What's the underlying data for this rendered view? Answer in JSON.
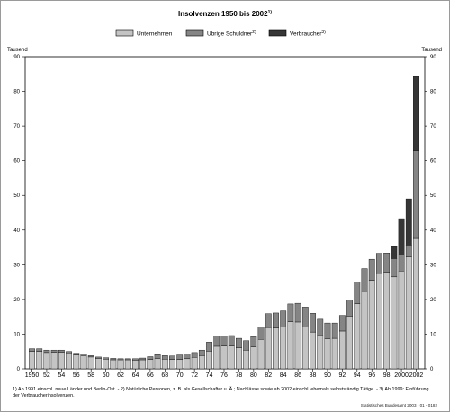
{
  "chart_data": {
    "type": "bar",
    "stacked": true,
    "title": "Insolvenzen 1950 bis 2002",
    "title_footnote": "1)",
    "ylabel_left": "Tausend",
    "ylabel_right": "Tausend",
    "ylim": [
      0,
      90
    ],
    "yticks": [
      0,
      10,
      20,
      30,
      40,
      50,
      60,
      70,
      80,
      90
    ],
    "xtick_labels": [
      "1950",
      "52",
      "54",
      "56",
      "58",
      "60",
      "62",
      "64",
      "66",
      "68",
      "70",
      "72",
      "74",
      "76",
      "78",
      "80",
      "82",
      "84",
      "86",
      "88",
      "90",
      "92",
      "94",
      "96",
      "98",
      "2000",
      "2002"
    ],
    "legend_position": "top",
    "categories": [
      "1950",
      "1951",
      "1952",
      "1953",
      "1954",
      "1955",
      "1956",
      "1957",
      "1958",
      "1959",
      "1960",
      "1961",
      "1962",
      "1963",
      "1964",
      "1965",
      "1966",
      "1967",
      "1968",
      "1969",
      "1970",
      "1971",
      "1972",
      "1973",
      "1974",
      "1975",
      "1976",
      "1977",
      "1978",
      "1979",
      "1980",
      "1981",
      "1982",
      "1983",
      "1984",
      "1985",
      "1986",
      "1987",
      "1988",
      "1989",
      "1990",
      "1991",
      "1992",
      "1993",
      "1994",
      "1995",
      "1996",
      "1997",
      "1998",
      "1999",
      "2000",
      "2001",
      "2002"
    ],
    "series": [
      {
        "name": "Unternehmen",
        "footnote": "",
        "color": "#c4c4c4",
        "values": [
          5.0,
          5.0,
          4.7,
          4.8,
          4.8,
          4.4,
          4.0,
          3.8,
          3.4,
          3.0,
          2.8,
          2.6,
          2.6,
          2.6,
          2.5,
          2.6,
          2.7,
          3.0,
          2.8,
          2.7,
          2.7,
          2.9,
          3.3,
          3.8,
          5.1,
          6.5,
          6.6,
          6.6,
          6.1,
          5.4,
          6.3,
          8.5,
          11.9,
          11.8,
          12.0,
          13.6,
          13.5,
          12.1,
          10.6,
          9.6,
          8.7,
          8.8,
          10.9,
          15.2,
          18.8,
          22.3,
          25.5,
          27.5,
          27.8,
          26.5,
          28.2,
          32.3,
          37.6
        ]
      },
      {
        "name": "Übrige Schuldner",
        "footnote": "2)",
        "color": "#858585",
        "values": [
          0.8,
          0.8,
          0.7,
          0.6,
          0.6,
          0.6,
          0.5,
          0.5,
          0.4,
          0.4,
          0.4,
          0.4,
          0.3,
          0.3,
          0.4,
          0.5,
          0.8,
          1.1,
          1.0,
          1.0,
          1.3,
          1.4,
          1.4,
          1.6,
          2.6,
          2.9,
          2.8,
          3.0,
          2.7,
          2.7,
          3.0,
          3.5,
          4.0,
          4.3,
          4.7,
          5.1,
          5.4,
          5.7,
          5.4,
          4.7,
          4.5,
          4.4,
          4.5,
          4.7,
          6.2,
          6.6,
          6.1,
          5.8,
          5.6,
          5.3,
          4.6,
          3.4,
          25.3
        ]
      },
      {
        "name": "Verbraucher",
        "footnote": "3)",
        "color": "#363636",
        "values": [
          0,
          0,
          0,
          0,
          0,
          0,
          0,
          0,
          0,
          0,
          0,
          0,
          0,
          0,
          0,
          0,
          0,
          0,
          0,
          0,
          0,
          0,
          0,
          0,
          0,
          0,
          0,
          0,
          0,
          0,
          0,
          0,
          0,
          0,
          0,
          0,
          0,
          0,
          0,
          0,
          0,
          0,
          0,
          0,
          0,
          0,
          0,
          0,
          0,
          3.4,
          10.5,
          13.3,
          21.4
        ]
      }
    ]
  },
  "footnote_text": "1) Ab 1991 einschl. neue Länder und Berlin-Ost. - 2) Natürliche Personen, z. B. als Gesellschafter u. Ä.; Nachlässe sowie ab 2002 einschl. ehemals selbstständig Tätige. - 3) Ab 1999: Einführung der Verbraucherinsolvenzen.",
  "source_text": "Statistisches Bundesamt 2003 - 01 - 0182"
}
